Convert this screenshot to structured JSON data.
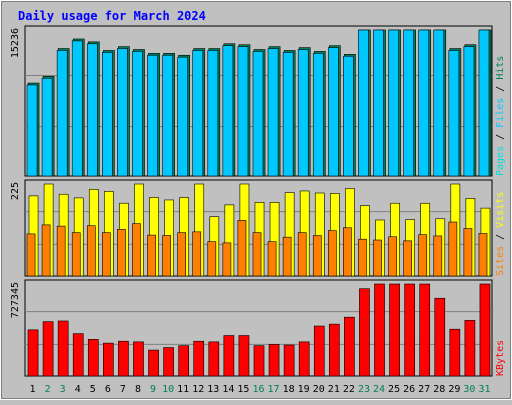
{
  "chart_data": {
    "type": "bar",
    "title": "Daily usage for March 2024",
    "categories": [
      "1",
      "2",
      "3",
      "4",
      "5",
      "6",
      "7",
      "8",
      "9",
      "10",
      "11",
      "12",
      "13",
      "14",
      "15",
      "16",
      "17",
      "18",
      "19",
      "20",
      "21",
      "22",
      "23",
      "24",
      "25",
      "26",
      "27",
      "28",
      "29",
      "30",
      "31"
    ],
    "weekend_days": [
      "2",
      "3",
      "9",
      "10",
      "16",
      "17",
      "23",
      "24",
      "30",
      "31"
    ],
    "panels": [
      {
        "id": "hits",
        "scale_label": "15236",
        "ymax": 15236,
        "axis_labels": [
          "Pages",
          "Files",
          "Hits"
        ],
        "series": [
          {
            "name": "Hits",
            "color": "#00805c",
            "values": [
              9700,
              10400,
              13300,
              14300,
              14000,
              13100,
              13500,
              13200,
              12800,
              12800,
              12600,
              13300,
              13300,
              13800,
              13700,
              13200,
              13500,
              13100,
              13400,
              13000,
              13600,
              12700,
              16200,
              17700,
              17500,
              17800,
              17600,
              15700,
              13300,
              13700,
              17500
            ]
          },
          {
            "name": "Files",
            "color": "#00c8ff",
            "values": [
              9500,
              10200,
              13100,
              14100,
              13800,
              12900,
              13300,
              13000,
              12600,
              12600,
              12400,
              13100,
              13100,
              13600,
              13500,
              13000,
              13300,
              12900,
              13200,
              12800,
              13400,
              12500,
              16000,
              17500,
              17300,
              17600,
              17400,
              15500,
              13100,
              13500,
              17300
            ]
          },
          {
            "name": "Pages",
            "color": "#00e0e0",
            "values": []
          }
        ]
      },
      {
        "id": "visits",
        "scale_label": "225",
        "ymax": 225,
        "axis_labels": [
          "Sites",
          "Visits"
        ],
        "series": [
          {
            "name": "Visits",
            "color": "#ffff00",
            "values": [
              196,
              226,
              200,
              191,
              212,
              207,
              178,
              225,
              192,
              186,
              192,
              228,
              145,
              174,
              232,
              180,
              180,
              204,
              208,
              203,
              202,
              214,
              172,
              137,
              178,
              138,
              178,
              140,
              227,
              190,
              166
            ]
          },
          {
            "name": "Sites",
            "color": "#ff8000",
            "values": [
              103,
              125,
              122,
              106,
              123,
              106,
              114,
              128,
              100,
              99,
              106,
              108,
              84,
              81,
              136,
              106,
              84,
              95,
              106,
              99,
              111,
              118,
              90,
              88,
              96,
              86,
              101,
              98,
              132,
              116,
              104
            ]
          }
        ]
      },
      {
        "id": "kbytes",
        "scale_label": "727345",
        "ymax": 727345,
        "axis_labels": [
          "KBytes"
        ],
        "series": [
          {
            "name": "KBytes",
            "color": "#ff0000",
            "values": [
              365000,
              430000,
              435000,
              335000,
              290000,
              260000,
              275000,
              270000,
              205000,
              225000,
              240000,
              275000,
              270000,
              320000,
              320000,
              240000,
              250000,
              245000,
              270000,
              395000,
              410000,
              465000,
              690000,
              930000,
              910000,
              925000,
              910000,
              615000,
              370000,
              440000,
              880000
            ]
          }
        ]
      }
    ],
    "grid": true
  }
}
